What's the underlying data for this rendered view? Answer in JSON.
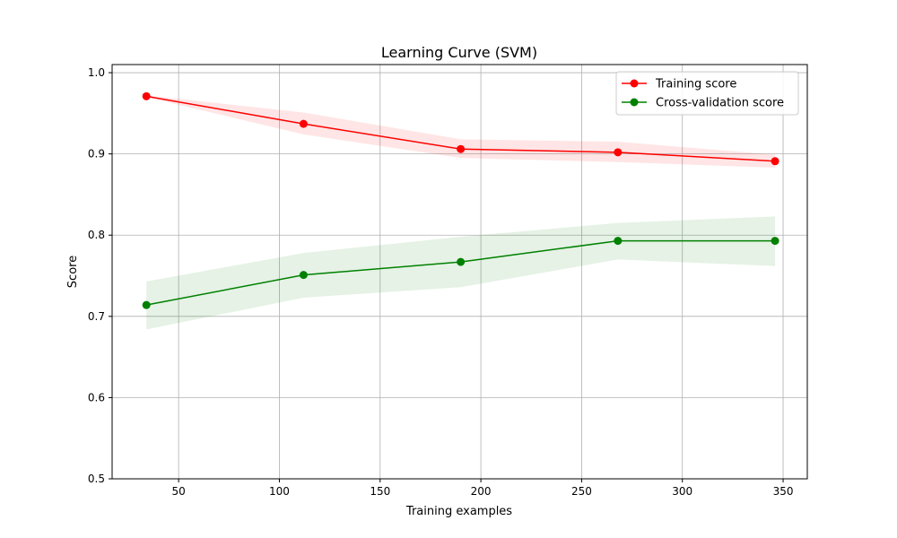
{
  "chart_data": {
    "type": "line",
    "title": "Learning Curve (SVM)",
    "xlabel": "Training examples",
    "ylabel": "Score",
    "xlim": [
      17,
      362
    ],
    "ylim": [
      0.5,
      1.01
    ],
    "xticks": [
      50,
      100,
      150,
      200,
      250,
      300,
      350
    ],
    "yticks": [
      0.5,
      0.6,
      0.7,
      0.8,
      0.9,
      1.0
    ],
    "xtick_labels": [
      "50",
      "100",
      "150",
      "200",
      "250",
      "300",
      "350"
    ],
    "ytick_labels": [
      "0.5",
      "0.6",
      "0.7",
      "0.8",
      "0.9",
      "1.0"
    ],
    "grid": true,
    "legend_position": "top-right",
    "x": [
      34,
      112,
      190,
      268,
      346
    ],
    "series": [
      {
        "name": "Training score",
        "color": "#ff0000",
        "marker": "circle",
        "values": [
          0.971,
          0.937,
          0.906,
          0.902,
          0.891
        ],
        "band_lower": [
          0.97,
          0.924,
          0.895,
          0.89,
          0.883
        ],
        "band_upper": [
          0.972,
          0.951,
          0.918,
          0.915,
          0.899
        ]
      },
      {
        "name": "Cross-validation score",
        "color": "#008000",
        "marker": "circle",
        "values": [
          0.714,
          0.751,
          0.767,
          0.793,
          0.793
        ],
        "band_lower": [
          0.684,
          0.723,
          0.736,
          0.77,
          0.762
        ],
        "band_upper": [
          0.743,
          0.778,
          0.798,
          0.815,
          0.823
        ]
      }
    ]
  }
}
